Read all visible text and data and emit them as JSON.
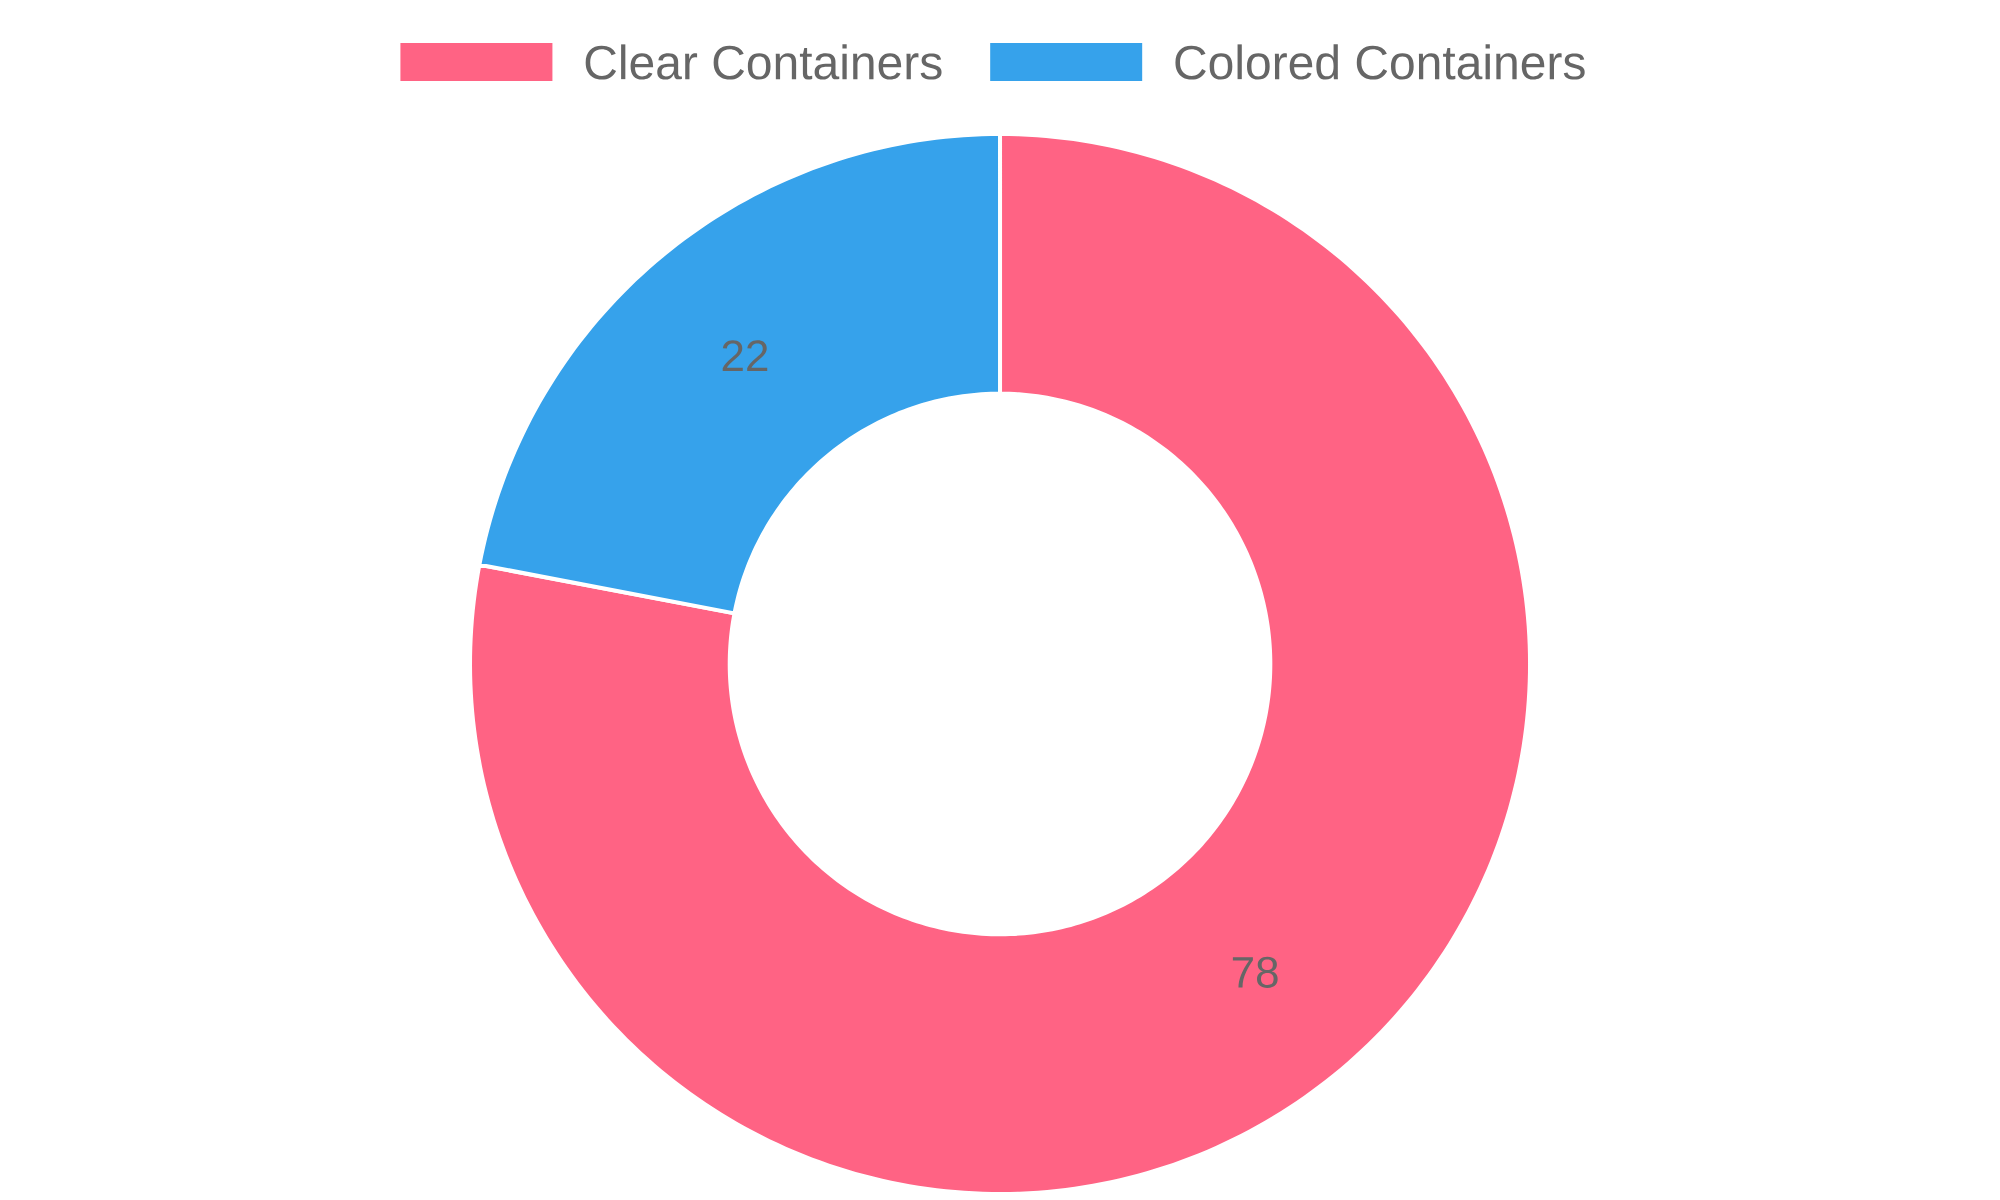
{
  "chart_data": {
    "type": "donut",
    "categories": [
      "Clear Containers",
      "Colored Containers"
    ],
    "values": [
      78,
      22
    ],
    "colors": [
      "#ff6384",
      "#36a2eb"
    ],
    "legend": "top",
    "data_labels": true
  }
}
